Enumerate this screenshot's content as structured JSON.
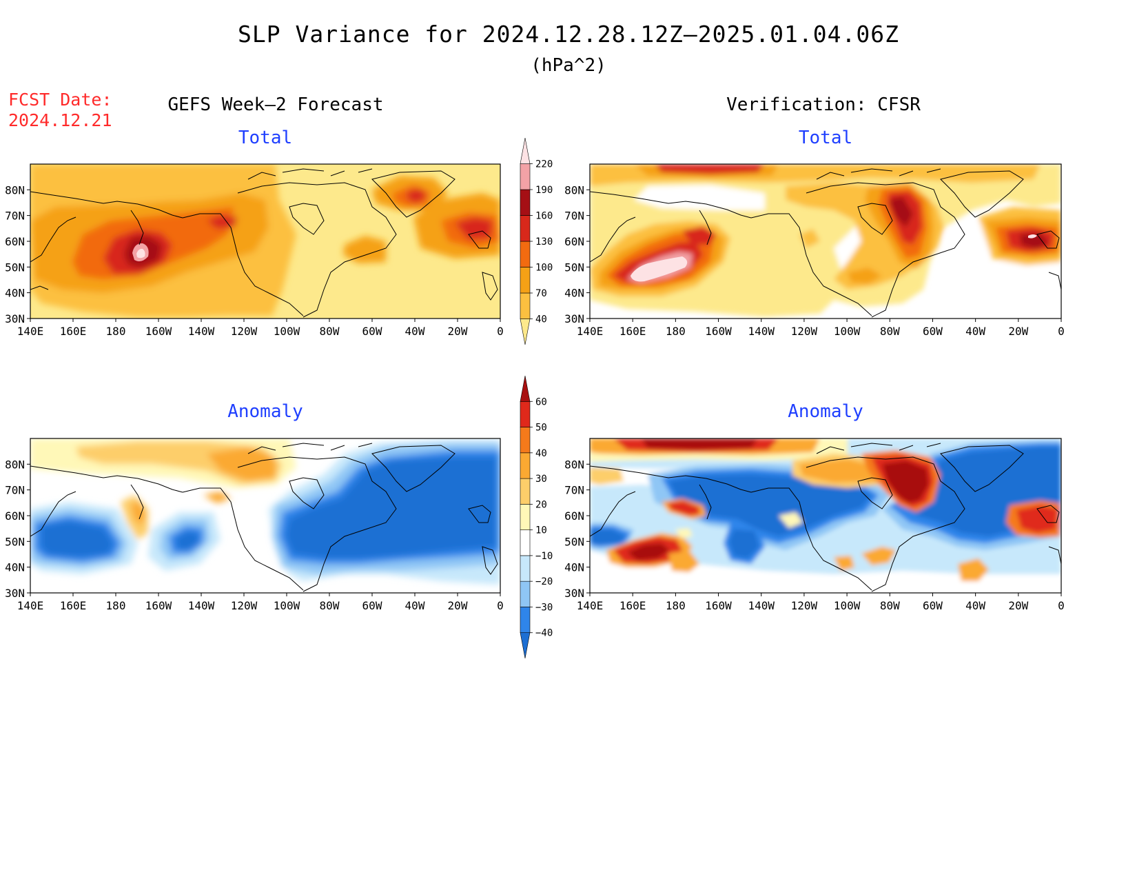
{
  "header": {
    "title": "SLP Variance for 2024.12.28.12Z–2025.01.04.06Z",
    "units": "(hPa^2)",
    "fcst_label": "FCST Date:",
    "fcst_date": "2024.12.21"
  },
  "columns": {
    "left_title": "GEFS Week–2 Forecast",
    "right_title": "Verification: CFSR"
  },
  "panels": [
    {
      "id": "gefs-total",
      "subtitle": "Total"
    },
    {
      "id": "cfsr-total",
      "subtitle": "Total"
    },
    {
      "id": "gefs-anomaly",
      "subtitle": "Anomaly"
    },
    {
      "id": "cfsr-anomaly",
      "subtitle": "Anomaly"
    }
  ],
  "axes": {
    "lat_labels": [
      "80N",
      "70N",
      "60N",
      "50N",
      "40N",
      "30N"
    ],
    "lon_labels": [
      "140E",
      "160E",
      "180",
      "160W",
      "140W",
      "120W",
      "100W",
      "80W",
      "60W",
      "40W",
      "20W",
      "0"
    ]
  },
  "colorbars": {
    "total": {
      "levels": [
        "40",
        "70",
        "100",
        "130",
        "160",
        "190",
        "220"
      ],
      "colors": [
        "#fde98c",
        "#fcc040",
        "#f5a116",
        "#f26b10",
        "#d8281b",
        "#a50f15",
        "#f3a2a6",
        "#fde2e4"
      ]
    },
    "anomaly": {
      "levels": [
        "−40",
        "−30",
        "−20",
        "−10",
        "10",
        "20",
        "30",
        "40",
        "50",
        "60"
      ],
      "colors": [
        "#1d6fd3",
        "#2f85ea",
        "#8fc6f5",
        "#c7e8fb",
        "#ffffff",
        "#fff8b8",
        "#fdce6a",
        "#fba932",
        "#f57a1b",
        "#e0291b",
        "#a81010"
      ]
    }
  }
}
